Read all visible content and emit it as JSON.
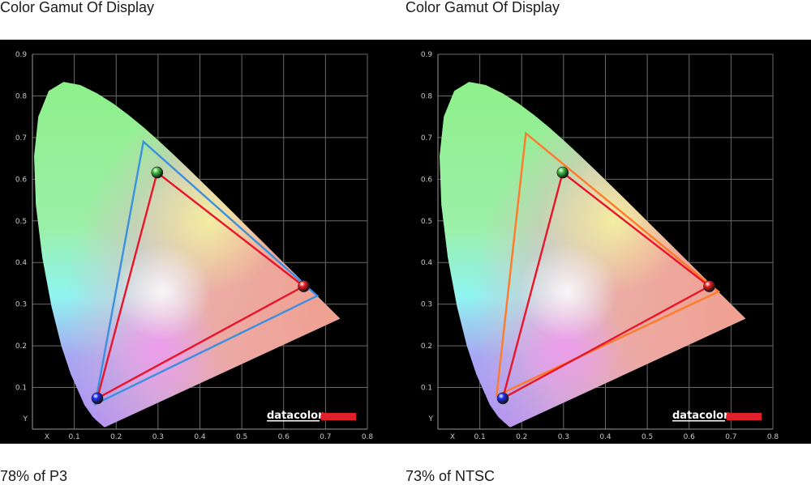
{
  "chart_data": [
    {
      "type": "scatter",
      "title": "Color Gamut Of Display",
      "caption": "78% of P3",
      "xlabel": "X",
      "ylabel": "Y",
      "xlim": [
        0,
        0.8
      ],
      "ylim": [
        0,
        0.9
      ],
      "x_ticks": [
        "0.1",
        "0.2",
        "0.3",
        "0.4",
        "0.5",
        "0.6",
        "0.7",
        "0.8"
      ],
      "y_ticks": [
        "0.1",
        "0.2",
        "0.3",
        "0.4",
        "0.5",
        "0.6",
        "0.7",
        "0.8",
        "0.9"
      ],
      "grid": true,
      "brand": "datacolor",
      "series": [
        {
          "color": "#3d8fe0",
          "points": [
            [
              0.68,
              0.32
            ],
            [
              0.265,
              0.69
            ],
            [
              0.15,
              0.06
            ]
          ]
        },
        {
          "color": "#e8142a",
          "points": [
            [
              0.648,
              0.343
            ],
            [
              0.298,
              0.616
            ],
            [
              0.155,
              0.074
            ]
          ]
        }
      ],
      "primaries": [
        {
          "color": "#ee2020",
          "x": 0.648,
          "y": 0.343
        },
        {
          "color": "#40c040",
          "x": 0.298,
          "y": 0.616
        },
        {
          "color": "#2030ee",
          "x": 0.155,
          "y": 0.074
        }
      ]
    },
    {
      "type": "scatter",
      "title": "Color Gamut Of Display",
      "caption": "73% of NTSC",
      "xlabel": "X",
      "ylabel": "Y",
      "xlim": [
        0,
        0.8
      ],
      "ylim": [
        0,
        0.9
      ],
      "x_ticks": [
        "0.1",
        "0.2",
        "0.3",
        "0.4",
        "0.5",
        "0.6",
        "0.7",
        "0.8"
      ],
      "y_ticks": [
        "0.1",
        "0.2",
        "0.3",
        "0.4",
        "0.5",
        "0.6",
        "0.7",
        "0.8",
        "0.9"
      ],
      "grid": true,
      "brand": "datacolor",
      "series": [
        {
          "color": "#ff7a2a",
          "points": [
            [
              0.67,
              0.33
            ],
            [
              0.21,
              0.71
            ],
            [
              0.14,
              0.08
            ]
          ]
        },
        {
          "color": "#e8142a",
          "points": [
            [
              0.648,
              0.343
            ],
            [
              0.298,
              0.616
            ],
            [
              0.155,
              0.074
            ]
          ]
        }
      ],
      "primaries": [
        {
          "color": "#ee2020",
          "x": 0.648,
          "y": 0.343
        },
        {
          "color": "#40c040",
          "x": 0.298,
          "y": 0.616
        },
        {
          "color": "#2030ee",
          "x": 0.155,
          "y": 0.074
        }
      ]
    }
  ]
}
